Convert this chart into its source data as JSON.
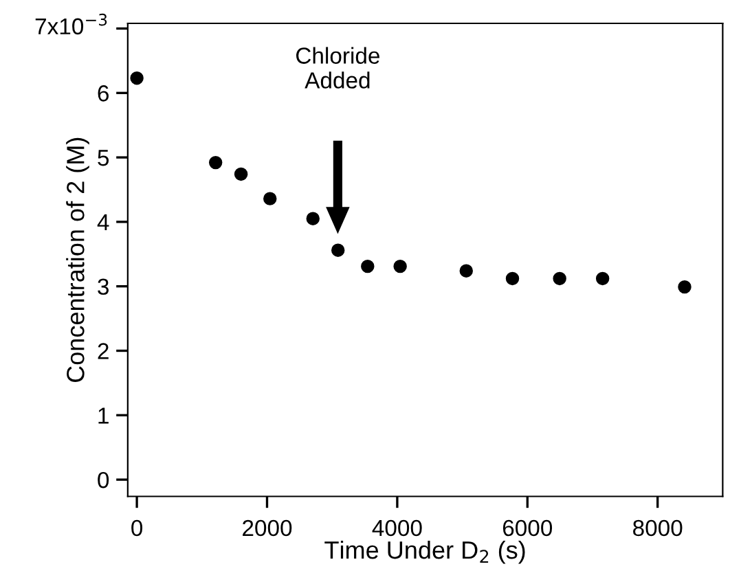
{
  "chart_data": {
    "type": "scatter",
    "xlabel": "Time Under D$_{2}$ (s)",
    "ylabel": "Concentration of 2 (M)",
    "x": [
      0,
      1210,
      1600,
      2045,
      2705,
      3090,
      3545,
      4045,
      5060,
      5770,
      6495,
      7155,
      8415
    ],
    "values": [
      6.23,
      4.92,
      4.74,
      4.36,
      4.05,
      3.56,
      3.31,
      3.31,
      3.24,
      3.12,
      3.12,
      3.12,
      2.99
    ],
    "color": "#000000",
    "marker": "circle",
    "xlim": [
      -140,
      9000
    ],
    "ylim": [
      -0.26,
      7.08
    ],
    "xticks": [
      0,
      2000,
      4000,
      6000,
      8000
    ],
    "yticks": [
      0,
      1,
      2,
      3,
      4,
      5,
      6,
      {
        "value": 7,
        "label": null
      }
    ],
    "annotations": [
      "Chloride\nAdded",
      "7x10$^{−3}$"
    ],
    "grid": false,
    "legend": false
  }
}
